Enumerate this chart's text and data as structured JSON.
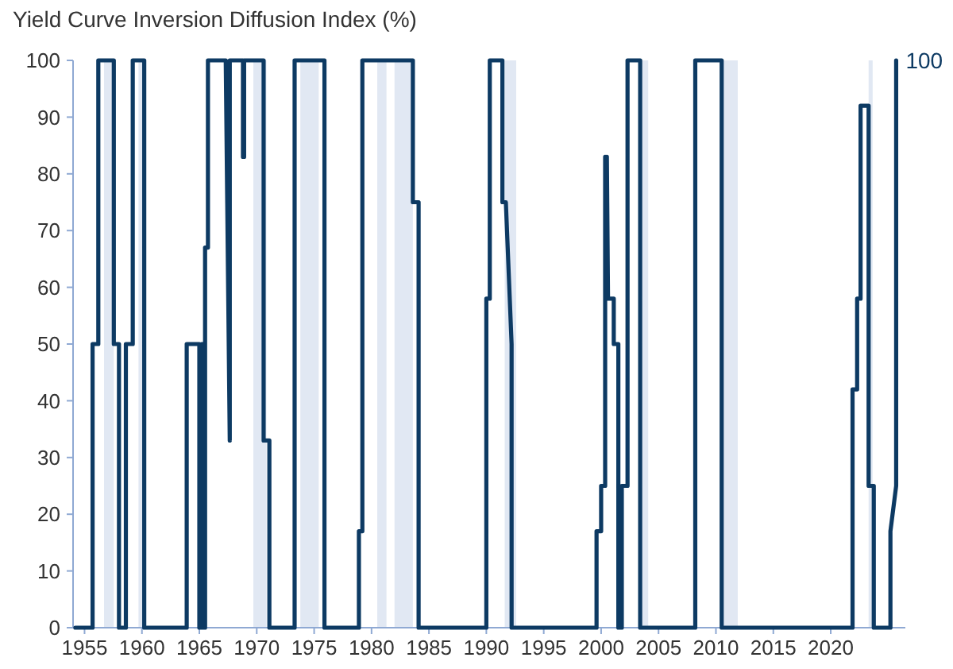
{
  "chart_data": {
    "type": "line",
    "title": "Yield Curve Inversion Diffusion Index (%)",
    "xlim": [
      1954,
      2026.5
    ],
    "xticks": [
      1955,
      1960,
      1965,
      1970,
      1975,
      1980,
      1985,
      1990,
      1995,
      2000,
      2005,
      2010,
      2015,
      2020
    ],
    "ylim": [
      0,
      100
    ],
    "yticks": [
      0,
      10,
      20,
      30,
      40,
      50,
      60,
      70,
      80,
      90,
      100
    ],
    "marker": "none",
    "line_style": "solid",
    "series": [
      {
        "color": "#0d3a63",
        "x": [
          1954.2,
          1955.7,
          1955.7,
          1956.2,
          1956.2,
          1957.55,
          1957.55,
          1958.0,
          1958.0,
          1958.6,
          1958.6,
          1959.2,
          1959.2,
          1960.2,
          1960.2,
          1963.9,
          1963.9,
          1965.0,
          1965.0,
          1965.2,
          1965.2,
          1965.3,
          1965.3,
          1965.5,
          1965.5,
          1965.75,
          1965.75,
          1967.3,
          1967.65,
          1967.65,
          1968.8,
          1968.8,
          1968.9,
          1968.9,
          1970.6,
          1970.6,
          1971.1,
          1971.1,
          1973.3,
          1973.3,
          1975.9,
          1975.9,
          1978.9,
          1978.9,
          1979.2,
          1979.2,
          1983.6,
          1983.6,
          1984.1,
          1984.1,
          1990.0,
          1990.0,
          1990.3,
          1990.3,
          1991.4,
          1991.4,
          1991.7,
          1992.2,
          1992.2,
          1999.6,
          1999.6,
          2000.0,
          2000.0,
          2000.35,
          2000.35,
          2000.45,
          2000.5,
          2000.6,
          2001.1,
          2001.1,
          2001.5,
          2001.5,
          2001.8,
          2001.8,
          2002.3,
          2002.3,
          2003.4,
          2003.4,
          2008.2,
          2008.2,
          2010.5,
          2010.5,
          2021.9,
          2021.9,
          2022.3,
          2022.3,
          2022.6,
          2022.6,
          2023.3,
          2023.3,
          2023.75,
          2023.75,
          2025.2,
          2025.2,
          2025.7,
          2025.7
        ],
        "values": [
          0,
          0,
          50,
          50,
          100,
          100,
          50,
          50,
          0,
          0,
          50,
          50,
          100,
          100,
          0,
          0,
          50,
          50,
          0,
          0,
          50,
          50,
          0,
          0,
          67,
          67,
          100,
          100,
          33,
          100,
          100,
          83,
          83,
          100,
          100,
          33,
          33,
          0,
          0,
          100,
          100,
          0,
          0,
          17,
          17,
          100,
          100,
          75,
          75,
          0,
          0,
          58,
          58,
          100,
          100,
          75,
          75,
          50,
          0,
          0,
          17,
          17,
          25,
          25,
          83,
          58,
          83,
          58,
          58,
          50,
          50,
          0,
          0,
          25,
          25,
          100,
          100,
          0,
          0,
          100,
          100,
          0,
          0,
          42,
          42,
          58,
          58,
          92,
          92,
          25,
          25,
          0,
          0,
          17,
          25,
          100
        ]
      }
    ],
    "bands": [
      {
        "axis": "x",
        "from": 1956.7,
        "to": 1957.55,
        "color": "#e1e8f3"
      },
      {
        "axis": "x",
        "from": 1959.7,
        "to": 1960.3,
        "color": "#e1e8f3"
      },
      {
        "axis": "x",
        "from": 1969.7,
        "to": 1970.85,
        "color": "#e1e8f3"
      },
      {
        "axis": "x",
        "from": 1973.8,
        "to": 1975.4,
        "color": "#e1e8f3"
      },
      {
        "axis": "x",
        "from": 1980.5,
        "to": 1981.3,
        "color": "#e1e8f3"
      },
      {
        "axis": "x",
        "from": 1982.0,
        "to": 1983.6,
        "color": "#e1e8f3"
      },
      {
        "axis": "x",
        "from": 1991.6,
        "to": 1992.6,
        "color": "#e1e8f3"
      },
      {
        "axis": "x",
        "from": 2003.4,
        "to": 2004.1,
        "color": "#e1e8f3"
      },
      {
        "axis": "x",
        "from": 2010.5,
        "to": 2011.9,
        "color": "#e1e8f3"
      },
      {
        "axis": "x",
        "from": 2023.3,
        "to": 2023.65,
        "color": "#e1e8f3"
      }
    ],
    "annotations": [
      {
        "text": "100",
        "x": 2025.7,
        "y": 100
      }
    ]
  }
}
